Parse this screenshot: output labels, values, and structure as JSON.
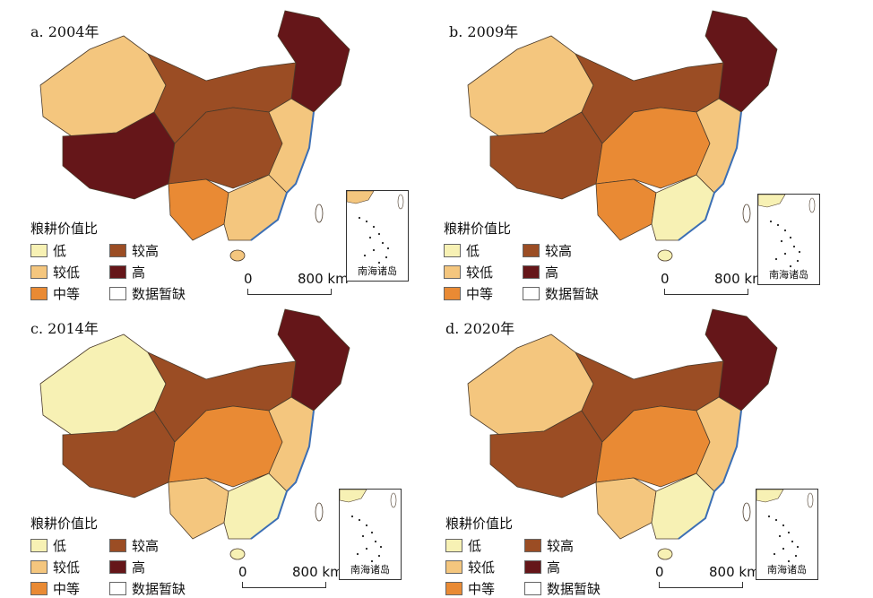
{
  "legend": {
    "title": "粮耕价值比",
    "classes": [
      {
        "key": "low",
        "label": "低",
        "color": "#f7f1b4"
      },
      {
        "key": "lower",
        "label": "较低",
        "color": "#f4c67e"
      },
      {
        "key": "medium",
        "label": "中等",
        "color": "#e98a34"
      },
      {
        "key": "higher",
        "label": "较高",
        "color": "#9b4d24"
      },
      {
        "key": "high",
        "label": "高",
        "color": "#651619"
      },
      {
        "key": "nodata",
        "label": "数据暂缺",
        "color": "#ffffff"
      }
    ]
  },
  "scale": {
    "zero": "0",
    "distance": "800 km"
  },
  "inset_label": "南海诸岛",
  "panels": [
    {
      "title": "a. 2004年",
      "regions": {
        "northwest": "lower",
        "tibet": "high",
        "northeast": "high",
        "north": "higher",
        "central": "higher",
        "southwest": "medium",
        "south": "lower",
        "east": "lower"
      }
    },
    {
      "title": "b. 2009年",
      "regions": {
        "northwest": "lower",
        "tibet": "higher",
        "northeast": "high",
        "north": "higher",
        "central": "medium",
        "southwest": "medium",
        "south": "low",
        "east": "lower"
      }
    },
    {
      "title": "c. 2014年",
      "regions": {
        "northwest": "low",
        "tibet": "higher",
        "northeast": "high",
        "north": "higher",
        "central": "medium",
        "southwest": "lower",
        "south": "low",
        "east": "lower"
      }
    },
    {
      "title": "d. 2020年",
      "regions": {
        "northwest": "lower",
        "tibet": "higher",
        "northeast": "high",
        "north": "higher",
        "central": "medium",
        "southwest": "lower",
        "south": "low",
        "east": "lower"
      }
    }
  ]
}
